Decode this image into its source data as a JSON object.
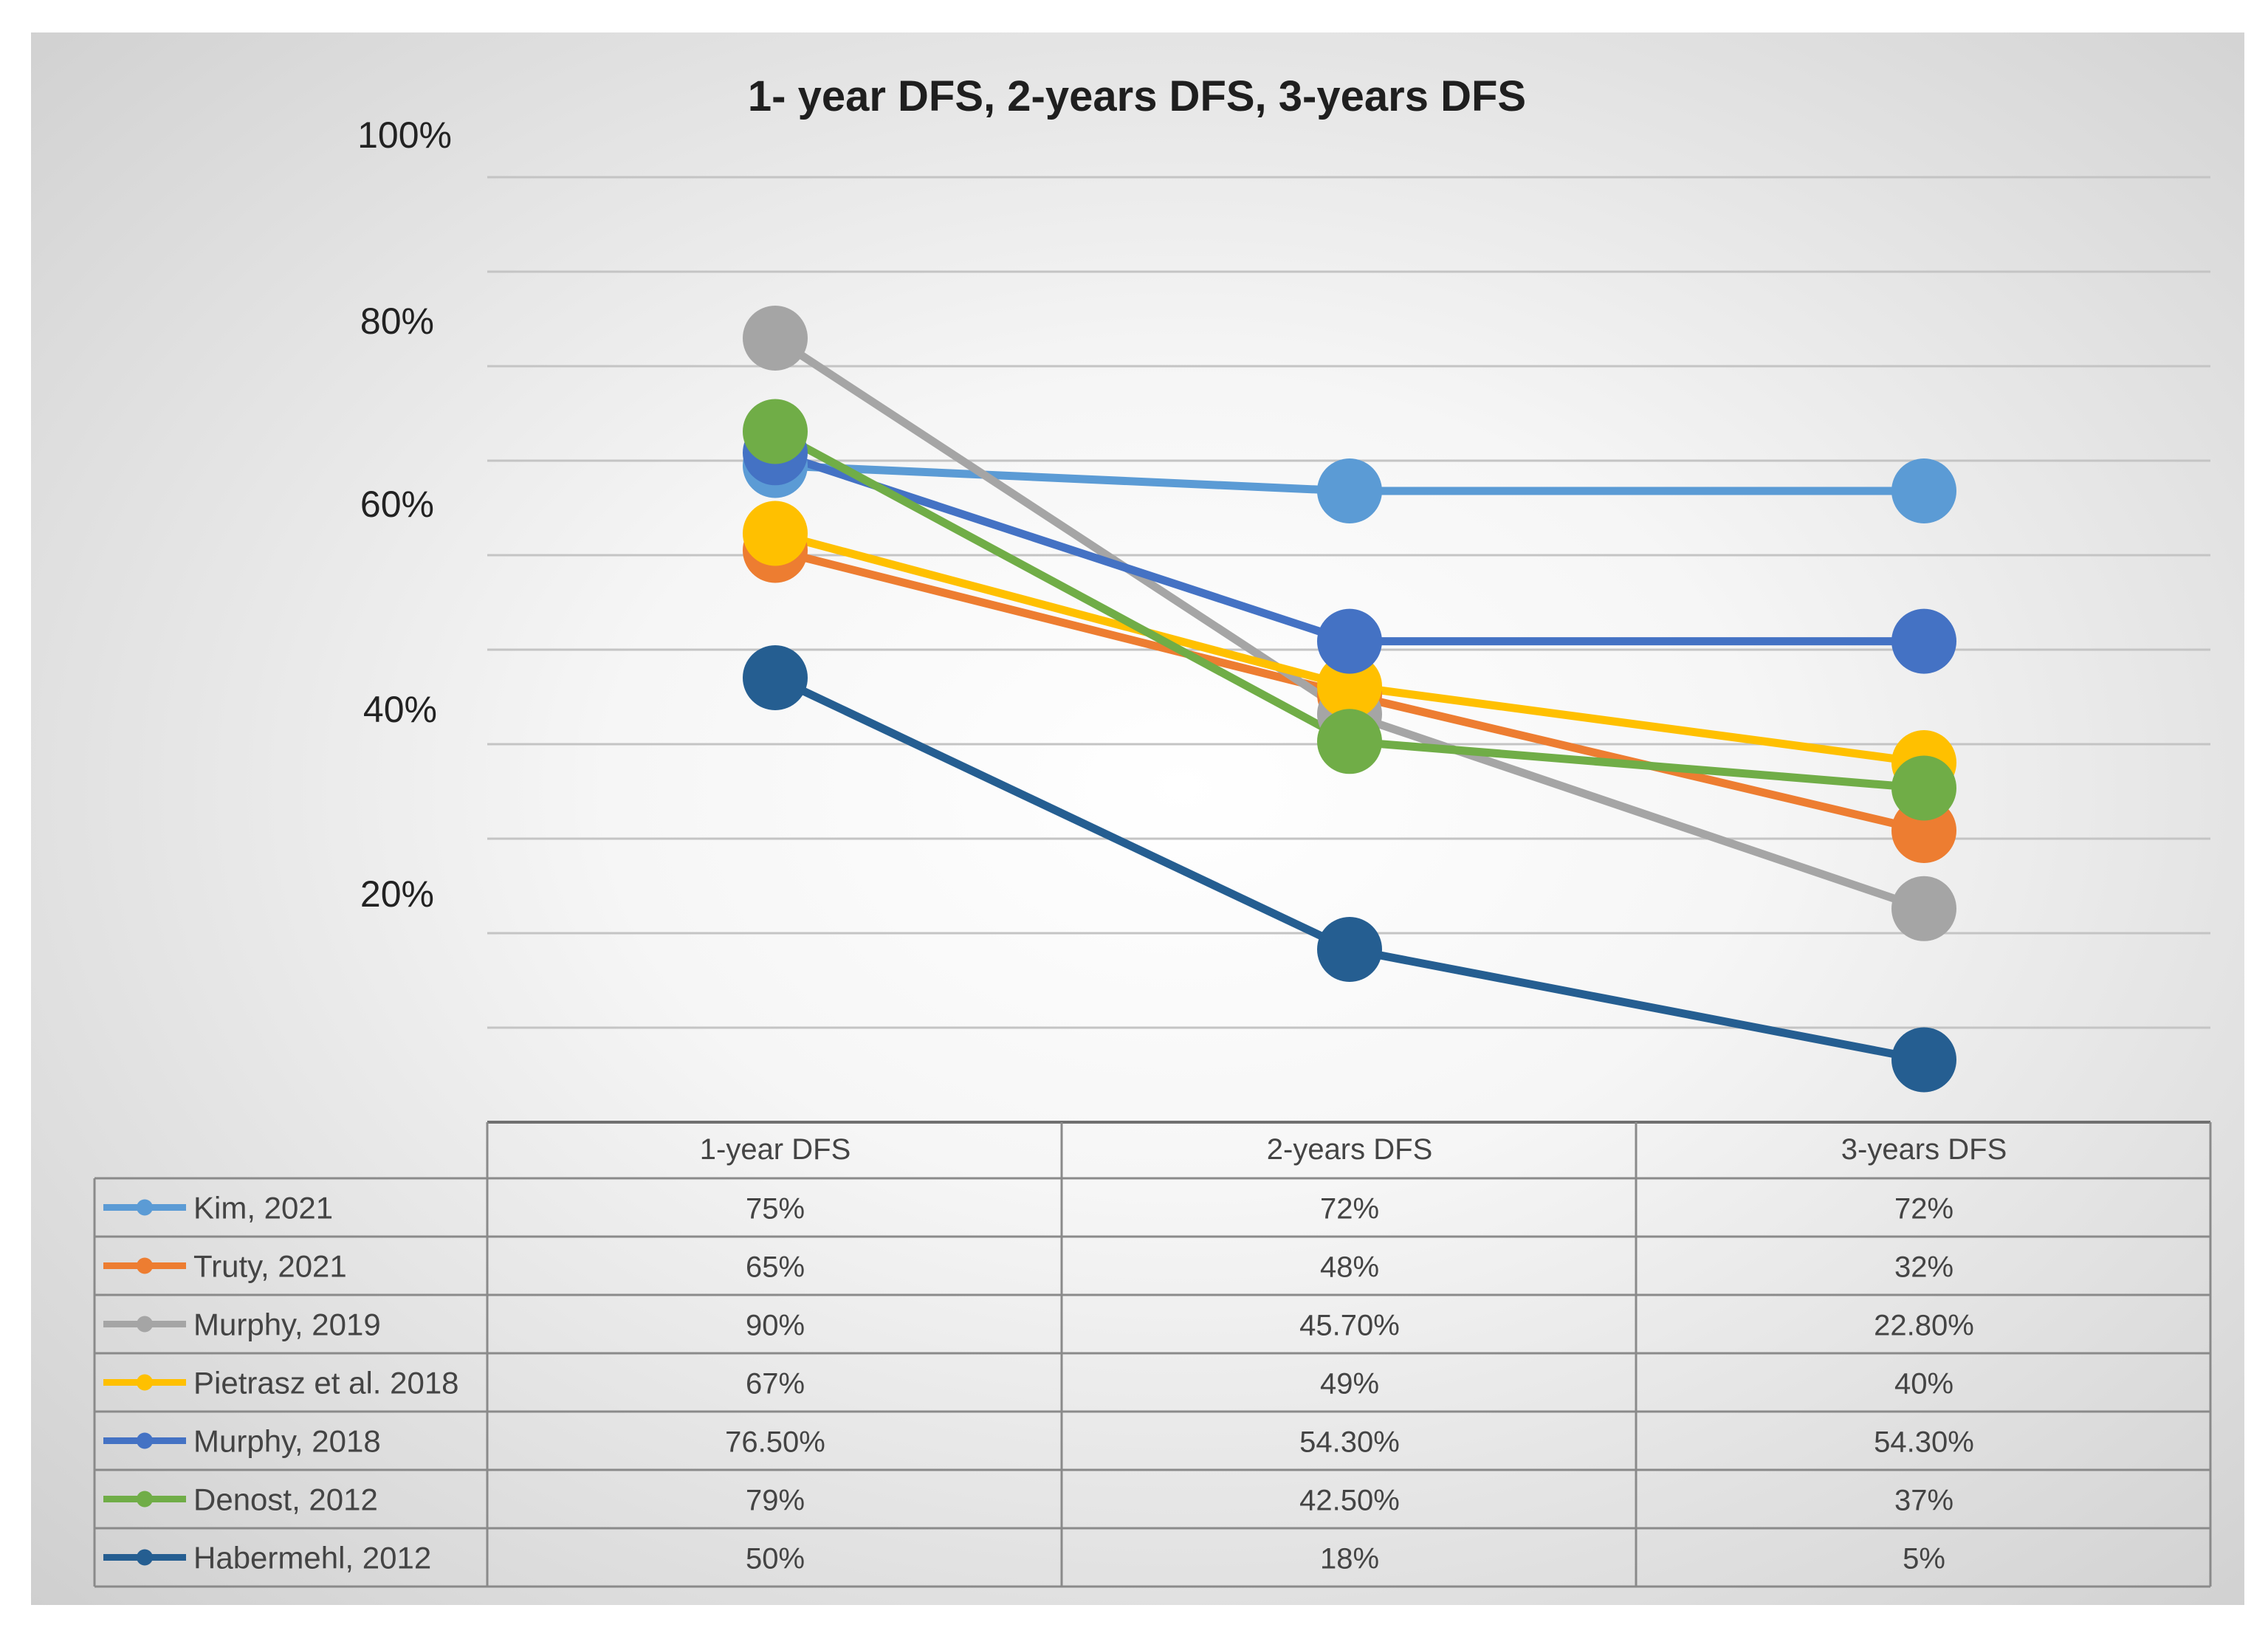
{
  "chart_data": {
    "type": "line",
    "title": "1- year DFS, 2-years DFS, 3-years DFS",
    "categories": [
      "1-year DFS",
      "2-years DFS",
      "3-years DFS"
    ],
    "y_tick_labels": [
      "100%",
      "80%",
      "60%",
      "40%",
      "20%"
    ],
    "grid": true,
    "legend_placement": "data-table-left",
    "series": [
      {
        "name": "Kim, 2021",
        "color": "#5b9bd5",
        "values": [
          75,
          72,
          72
        ],
        "labels": [
          "75%",
          "72%",
          "72%"
        ]
      },
      {
        "name": "Truty, 2021",
        "color": "#ed7d31",
        "values": [
          65,
          48,
          32
        ],
        "labels": [
          "65%",
          "48%",
          "32%"
        ]
      },
      {
        "name": "Murphy, 2019",
        "color": "#a5a5a5",
        "values": [
          90,
          45.7,
          22.8
        ],
        "labels": [
          "90%",
          "45.70%",
          "22.80%"
        ]
      },
      {
        "name": "Pietrasz et al. 2018",
        "color": "#ffc000",
        "values": [
          67,
          49,
          40
        ],
        "labels": [
          "67%",
          "49%",
          "40%"
        ]
      },
      {
        "name": "Murphy, 2018",
        "color": "#4472c4",
        "values": [
          76.5,
          54.3,
          54.3
        ],
        "labels": [
          "76.50%",
          "54.30%",
          "54.30%"
        ]
      },
      {
        "name": "Denost, 2012",
        "color": "#70ad47",
        "values": [
          79,
          42.5,
          37
        ],
        "labels": [
          "79%",
          "42.50%",
          "37%"
        ]
      },
      {
        "name": "Habermehl, 2012",
        "color": "#255e91",
        "values": [
          50,
          18,
          5
        ],
        "labels": [
          "50%",
          "18%",
          "5%"
        ]
      }
    ]
  }
}
